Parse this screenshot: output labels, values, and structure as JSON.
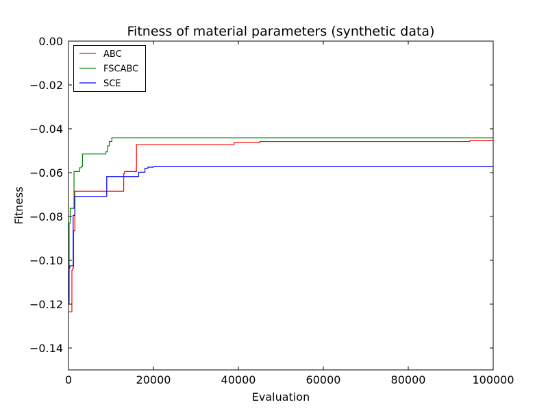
{
  "chart_data": {
    "type": "line",
    "title": "Fitness of material parameters (synthetic data)",
    "xlabel": "Evaluation",
    "ylabel": "Fitness",
    "xlim": [
      0,
      100000
    ],
    "ylim": [
      -0.15,
      0.0
    ],
    "xticks": [
      0,
      20000,
      40000,
      60000,
      80000,
      100000
    ],
    "xtick_labels": [
      "0",
      "20000",
      "40000",
      "60000",
      "80000",
      "100000"
    ],
    "yticks": [
      0.0,
      -0.02,
      -0.04,
      -0.06,
      -0.08,
      -0.1,
      -0.12,
      -0.14
    ],
    "ytick_labels": [
      "0.00",
      "−0.02",
      "−0.04",
      "−0.06",
      "−0.08",
      "−0.10",
      "−0.12",
      "−0.14"
    ],
    "grid": false,
    "legend_position": "top-left",
    "series": [
      {
        "name": "ABC",
        "color": "#ff0000",
        "step": true,
        "x": [
          0,
          800,
          1000,
          1200,
          1500,
          13000,
          13200,
          16000,
          39000,
          45000,
          94500,
          100000
        ],
        "y": [
          -0.1235,
          -0.1045,
          -0.1035,
          -0.0865,
          -0.0685,
          -0.0605,
          -0.0595,
          -0.0472,
          -0.0462,
          -0.0458,
          -0.0454,
          -0.0454
        ]
      },
      {
        "name": "FSCABC",
        "color": "#008000",
        "step": true,
        "x": [
          0,
          150,
          400,
          1300,
          2600,
          3000,
          3300,
          8800,
          9200,
          9600,
          10200,
          100000
        ],
        "y": [
          -0.12,
          -0.083,
          -0.0763,
          -0.0595,
          -0.0578,
          -0.0572,
          -0.0515,
          -0.0505,
          -0.0478,
          -0.0458,
          -0.0441,
          -0.0441
        ]
      },
      {
        "name": "SCE",
        "color": "#0000ff",
        "step": true,
        "x": [
          0,
          150,
          300,
          1100,
          1500,
          9000,
          16500,
          18000,
          18700,
          20000,
          100000
        ],
        "y": [
          -0.1185,
          -0.1035,
          -0.1025,
          -0.0795,
          -0.0708,
          -0.0618,
          -0.0598,
          -0.058,
          -0.0575,
          -0.0573,
          -0.0573
        ]
      }
    ]
  }
}
